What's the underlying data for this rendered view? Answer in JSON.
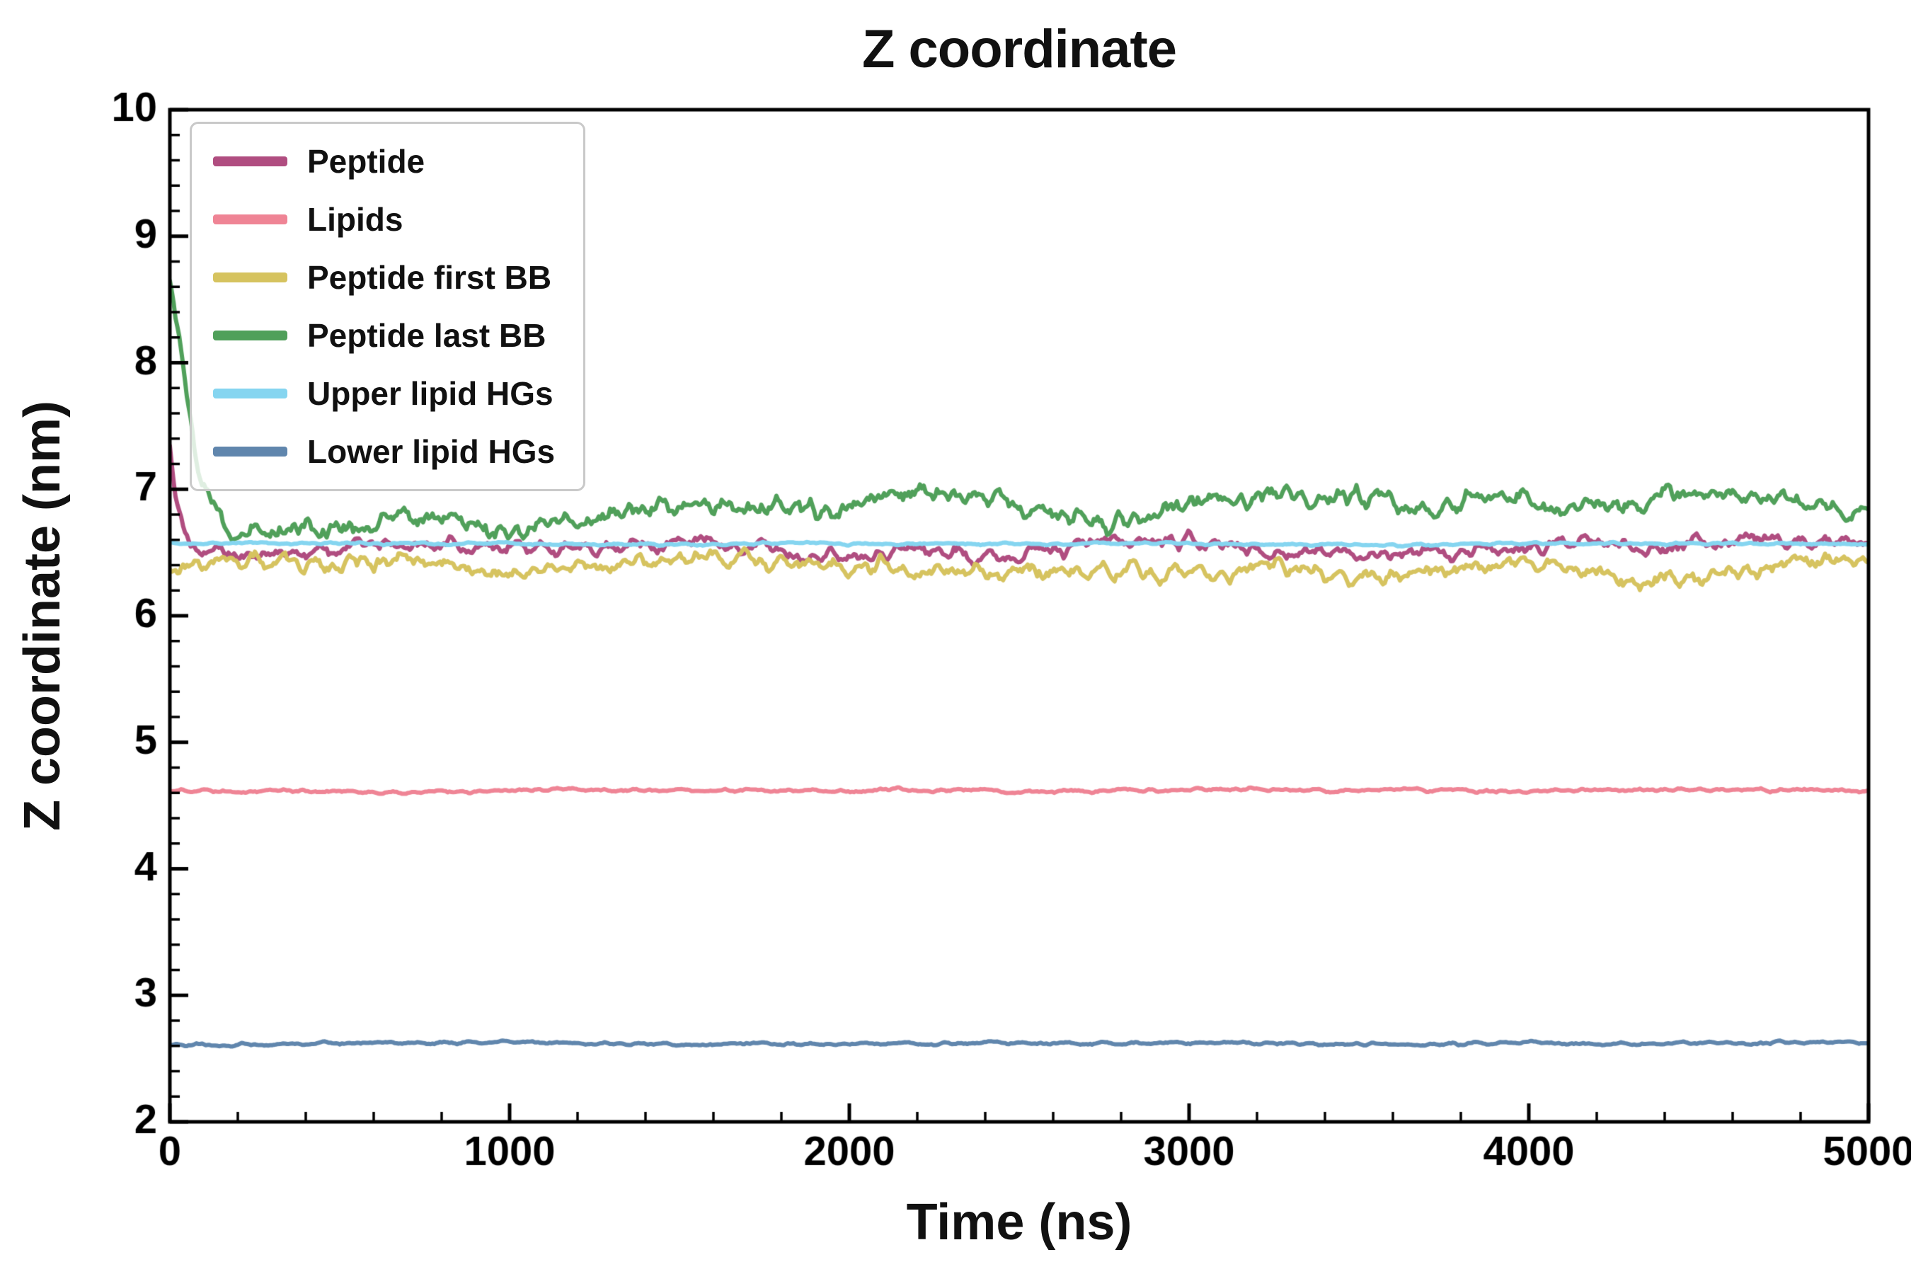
{
  "chart_data": {
    "type": "line",
    "title": "Z coordinate",
    "xlabel": "Time (ns)",
    "ylabel": "Z coordinate (nm)",
    "xlim": [
      0,
      5000
    ],
    "ylim": [
      2,
      10
    ],
    "xticks": [
      0,
      1000,
      2000,
      3000,
      4000,
      5000
    ],
    "yticks": [
      2,
      3,
      4,
      5,
      6,
      7,
      8,
      9,
      10
    ],
    "x_minor_step": 200,
    "y_minor_step": 0.2,
    "grid": false,
    "legend_position": "upper-left",
    "axis_color": "#000000",
    "background": "#ffffff",
    "series": [
      {
        "name": "Peptide",
        "color": "#b04d80",
        "linewidth": 6,
        "seed": 11,
        "noise_fast": 0.05,
        "noise_slow": 0.055,
        "x": [
          0,
          15,
          60,
          200,
          600,
          1200,
          2500,
          3500,
          5000
        ],
        "y": [
          7.35,
          6.95,
          6.55,
          6.5,
          6.53,
          6.5,
          6.55,
          6.52,
          6.55
        ]
      },
      {
        "name": "Lipids",
        "color": "#ef8495",
        "linewidth": 6,
        "seed": 22,
        "noise_fast": 0.012,
        "noise_slow": 0.012,
        "x": [
          0,
          5000
        ],
        "y": [
          4.62,
          4.62
        ]
      },
      {
        "name": "Peptide first BB",
        "color": "#d6c35f",
        "linewidth": 6,
        "seed": 33,
        "noise_fast": 0.06,
        "noise_slow": 0.07,
        "x": [
          0,
          100,
          800,
          2000,
          3200,
          4200,
          5000
        ],
        "y": [
          6.28,
          6.33,
          6.38,
          6.4,
          6.32,
          6.38,
          6.4
        ]
      },
      {
        "name": "Peptide last BB",
        "color": "#50a05a",
        "linewidth": 6,
        "seed": 44,
        "noise_fast": 0.07,
        "noise_slow": 0.11,
        "x": [
          0,
          25,
          80,
          160,
          400,
          1000,
          2000,
          3000,
          4000,
          5000
        ],
        "y": [
          8.65,
          8.2,
          7.1,
          6.65,
          6.7,
          6.8,
          6.85,
          6.9,
          6.9,
          6.95
        ]
      },
      {
        "name": "Upper lipid HGs",
        "color": "#85d5f0",
        "linewidth": 6,
        "seed": 55,
        "noise_fast": 0.008,
        "noise_slow": 0.01,
        "x": [
          0,
          5000
        ],
        "y": [
          6.57,
          6.57
        ]
      },
      {
        "name": "Lower lipid HGs",
        "color": "#6086ad",
        "linewidth": 6,
        "seed": 66,
        "noise_fast": 0.01,
        "noise_slow": 0.012,
        "x": [
          0,
          5000
        ],
        "y": [
          2.62,
          2.62
        ]
      }
    ]
  }
}
